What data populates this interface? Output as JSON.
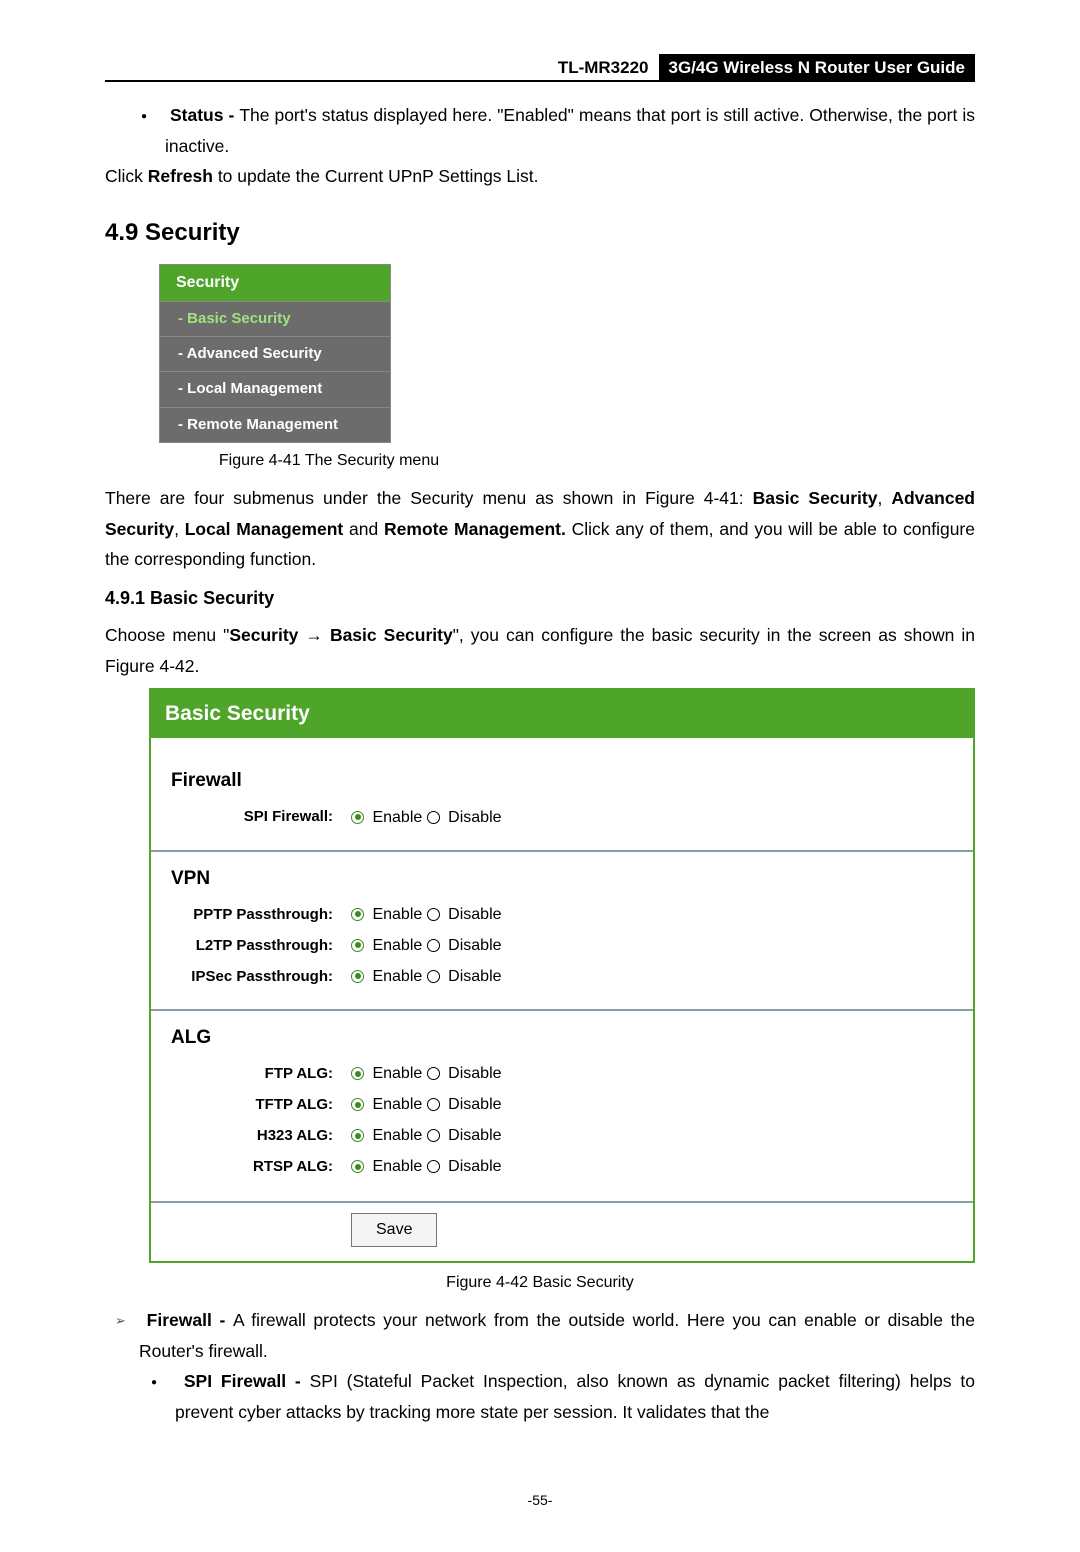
{
  "header": {
    "model": "TL-MR3220",
    "title": "3G/4G Wireless N Router User Guide"
  },
  "status_bullet": {
    "term": "Status - ",
    "rest": "The port's status displayed here. \"Enabled\" means that port is still active. Otherwise, the port is inactive."
  },
  "refresh_line": {
    "pre": "Click ",
    "bold": "Refresh",
    "post": " to update the Current UPnP Settings List."
  },
  "sec_49": "4.9   Security",
  "menu": {
    "header": "Security",
    "items": [
      {
        "label": "- Basic Security",
        "selected": true
      },
      {
        "label": "- Advanced Security",
        "selected": false
      },
      {
        "label": "- Local Management",
        "selected": false
      },
      {
        "label": "- Remote Management",
        "selected": false
      }
    ],
    "caption": "Figure 4-41    The Security menu"
  },
  "submenu_para": {
    "p1": "There are four submenus under the Security menu as shown in Figure 4-41: ",
    "b1": "Basic Security",
    "c1": ", ",
    "b2": "Advanced Security",
    "c2": ", ",
    "b3": "Local Management",
    "c3": " and ",
    "b4": "Remote Management.",
    "p2": " Click any of them, and you will be able to configure the corresponding function."
  },
  "sec_491": "4.9.1    Basic Security",
  "choose_para": {
    "p1": "Choose menu \"",
    "b1": "Security",
    "arrow": " → ",
    "b2": "Basic Security",
    "p2": "\", you can configure the basic security in the screen as shown in Figure 4-42."
  },
  "panel": {
    "title": "Basic Security",
    "groups": [
      {
        "title": "Firewall",
        "rows": [
          {
            "label": "SPI Firewall:",
            "enable": "Enable",
            "disable": "Disable",
            "value": "enable"
          }
        ]
      },
      {
        "title": "VPN",
        "rows": [
          {
            "label": "PPTP Passthrough:",
            "enable": "Enable",
            "disable": "Disable",
            "value": "enable"
          },
          {
            "label": "L2TP Passthrough:",
            "enable": "Enable",
            "disable": "Disable",
            "value": "enable"
          },
          {
            "label": "IPSec Passthrough:",
            "enable": "Enable",
            "disable": "Disable",
            "value": "enable"
          }
        ]
      },
      {
        "title": "ALG",
        "rows": [
          {
            "label": "FTP ALG:",
            "enable": "Enable",
            "disable": "Disable",
            "value": "enable"
          },
          {
            "label": "TFTP ALG:",
            "enable": "Enable",
            "disable": "Disable",
            "value": "enable"
          },
          {
            "label": "H323 ALG:",
            "enable": "Enable",
            "disable": "Disable",
            "value": "enable"
          },
          {
            "label": "RTSP ALG:",
            "enable": "Enable",
            "disable": "Disable",
            "value": "enable"
          }
        ]
      }
    ],
    "save": "Save",
    "caption": "Figure 4-42    Basic Security"
  },
  "firewall_bullet": {
    "term": "Firewall - ",
    "rest": "A firewall protects your network from the outside world. Here you can enable or disable the Router's firewall."
  },
  "spi_bullet": {
    "term": "SPI Firewall - ",
    "rest": "SPI (Stateful Packet Inspection, also known as dynamic packet filtering) helps to prevent cyber attacks by tracking more state per session. It validates that the"
  },
  "page_number": "-55-"
}
